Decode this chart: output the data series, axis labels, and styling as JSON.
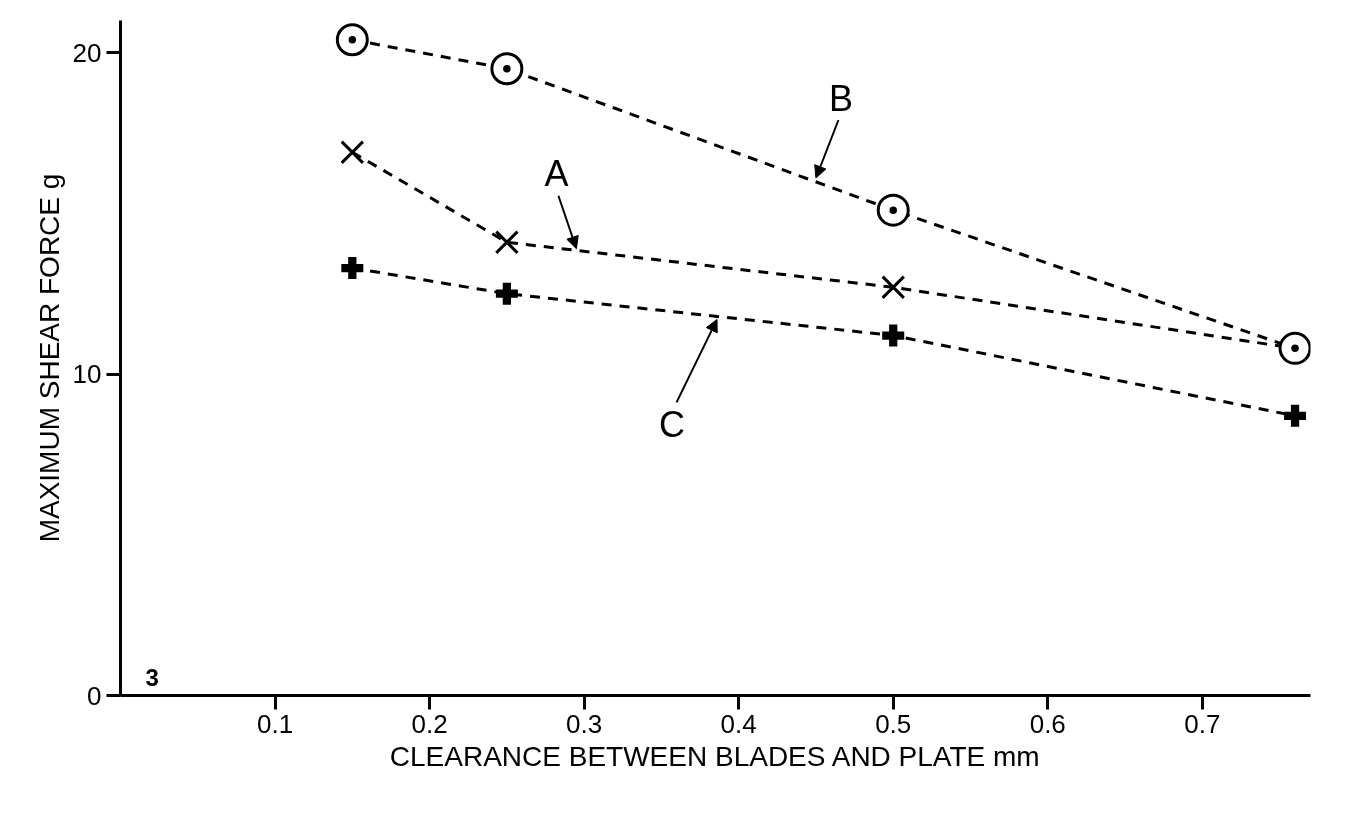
{
  "chart_data": {
    "type": "line",
    "xlabel": "CLEARANCE BETWEEN BLADES AND PLATE mm",
    "ylabel": "MAXIMUM SHEAR FORCE g",
    "x": [
      0.15,
      0.25,
      0.5,
      0.76
    ],
    "series": [
      {
        "color": "#000000",
        "marker": "x",
        "values": [
          16.9,
          14.1,
          12.7,
          10.8
        ]
      },
      {
        "color": "#000000",
        "marker": "circle",
        "values": [
          20.4,
          19.5,
          15.1,
          10.8
        ]
      },
      {
        "color": "#000000",
        "marker": "cross",
        "values": [
          13.3,
          12.5,
          11.2,
          8.7
        ]
      }
    ],
    "annotations": [
      {
        "text": "A",
        "x": 0.295,
        "y": 13.9
      },
      {
        "text": "B",
        "x": 0.45,
        "y": 16.1
      },
      {
        "text": "C",
        "x": 0.386,
        "y": 11.7
      },
      "3"
    ],
    "line_style": "dashed",
    "grid": false,
    "xlim": [
      0,
      0.77
    ],
    "ylim": [
      0,
      21
    ],
    "xticks": [
      0.1,
      0.2,
      0.3,
      0.4,
      0.5,
      0.6,
      0.7
    ],
    "yticks": [
      0,
      10,
      20
    ]
  }
}
